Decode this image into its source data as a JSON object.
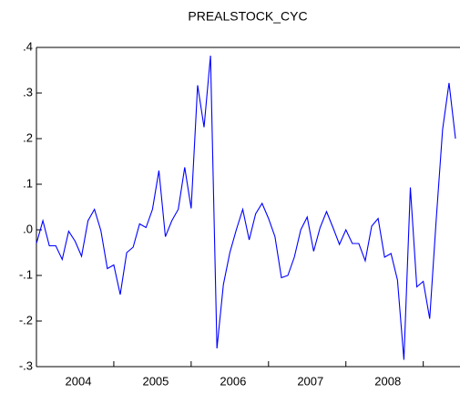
{
  "chart_data": {
    "type": "line",
    "title": "PREALSTOCK_CYC",
    "categories": [
      null,
      null,
      null,
      null,
      null,
      null,
      "2004",
      null,
      null,
      null,
      null,
      null,
      null,
      null,
      null,
      null,
      null,
      null,
      "2005",
      null,
      null,
      null,
      null,
      null,
      null,
      null,
      null,
      null,
      null,
      null,
      "2006",
      null,
      null,
      null,
      null,
      null,
      null,
      null,
      null,
      null,
      null,
      null,
      "2007",
      null,
      null,
      null,
      null,
      null,
      null,
      null,
      null,
      null,
      null,
      null,
      "2008",
      null,
      null,
      null,
      null,
      null,
      null,
      null,
      null,
      null,
      null,
      null
    ],
    "series": [
      {
        "name": "PREALSTOCK_CYC",
        "color": "#0000ff",
        "values": [
          -0.03,
          0.02,
          -0.035,
          -0.035,
          -0.065,
          -0.003,
          -0.025,
          -0.058,
          0.02,
          0.045,
          -0.002,
          -0.085,
          -0.077,
          -0.142,
          -0.05,
          -0.038,
          0.013,
          0.005,
          0.045,
          0.13,
          -0.015,
          0.02,
          0.045,
          0.137,
          0.047,
          0.317,
          0.225,
          0.382,
          -0.26,
          -0.12,
          -0.05,
          0.0,
          0.045,
          -0.022,
          0.035,
          0.058,
          0.025,
          -0.015,
          -0.105,
          -0.1,
          -0.06,
          0.0,
          0.028,
          -0.047,
          0.005,
          0.04,
          0.005,
          -0.032,
          0.0,
          -0.03,
          -0.03,
          -0.068,
          0.008,
          0.025,
          -0.06,
          -0.052,
          -0.11,
          -0.285,
          0.093,
          -0.125,
          -0.113,
          -0.195,
          0.02,
          0.22,
          0.322,
          0.2
        ]
      }
    ],
    "ylim": [
      -0.3,
      0.4
    ],
    "yticks": [
      {
        "value": -0.3,
        "label": "-.3"
      },
      {
        "value": -0.2,
        "label": "-.2"
      },
      {
        "value": -0.1,
        "label": "-.1"
      },
      {
        "value": 0,
        "label": ".0"
      },
      {
        "value": 0.1,
        "label": ".1"
      },
      {
        "value": 0.2,
        "label": ".2"
      },
      {
        "value": 0.3,
        "label": ".3"
      },
      {
        "value": 0.4,
        "label": ".4"
      }
    ]
  }
}
